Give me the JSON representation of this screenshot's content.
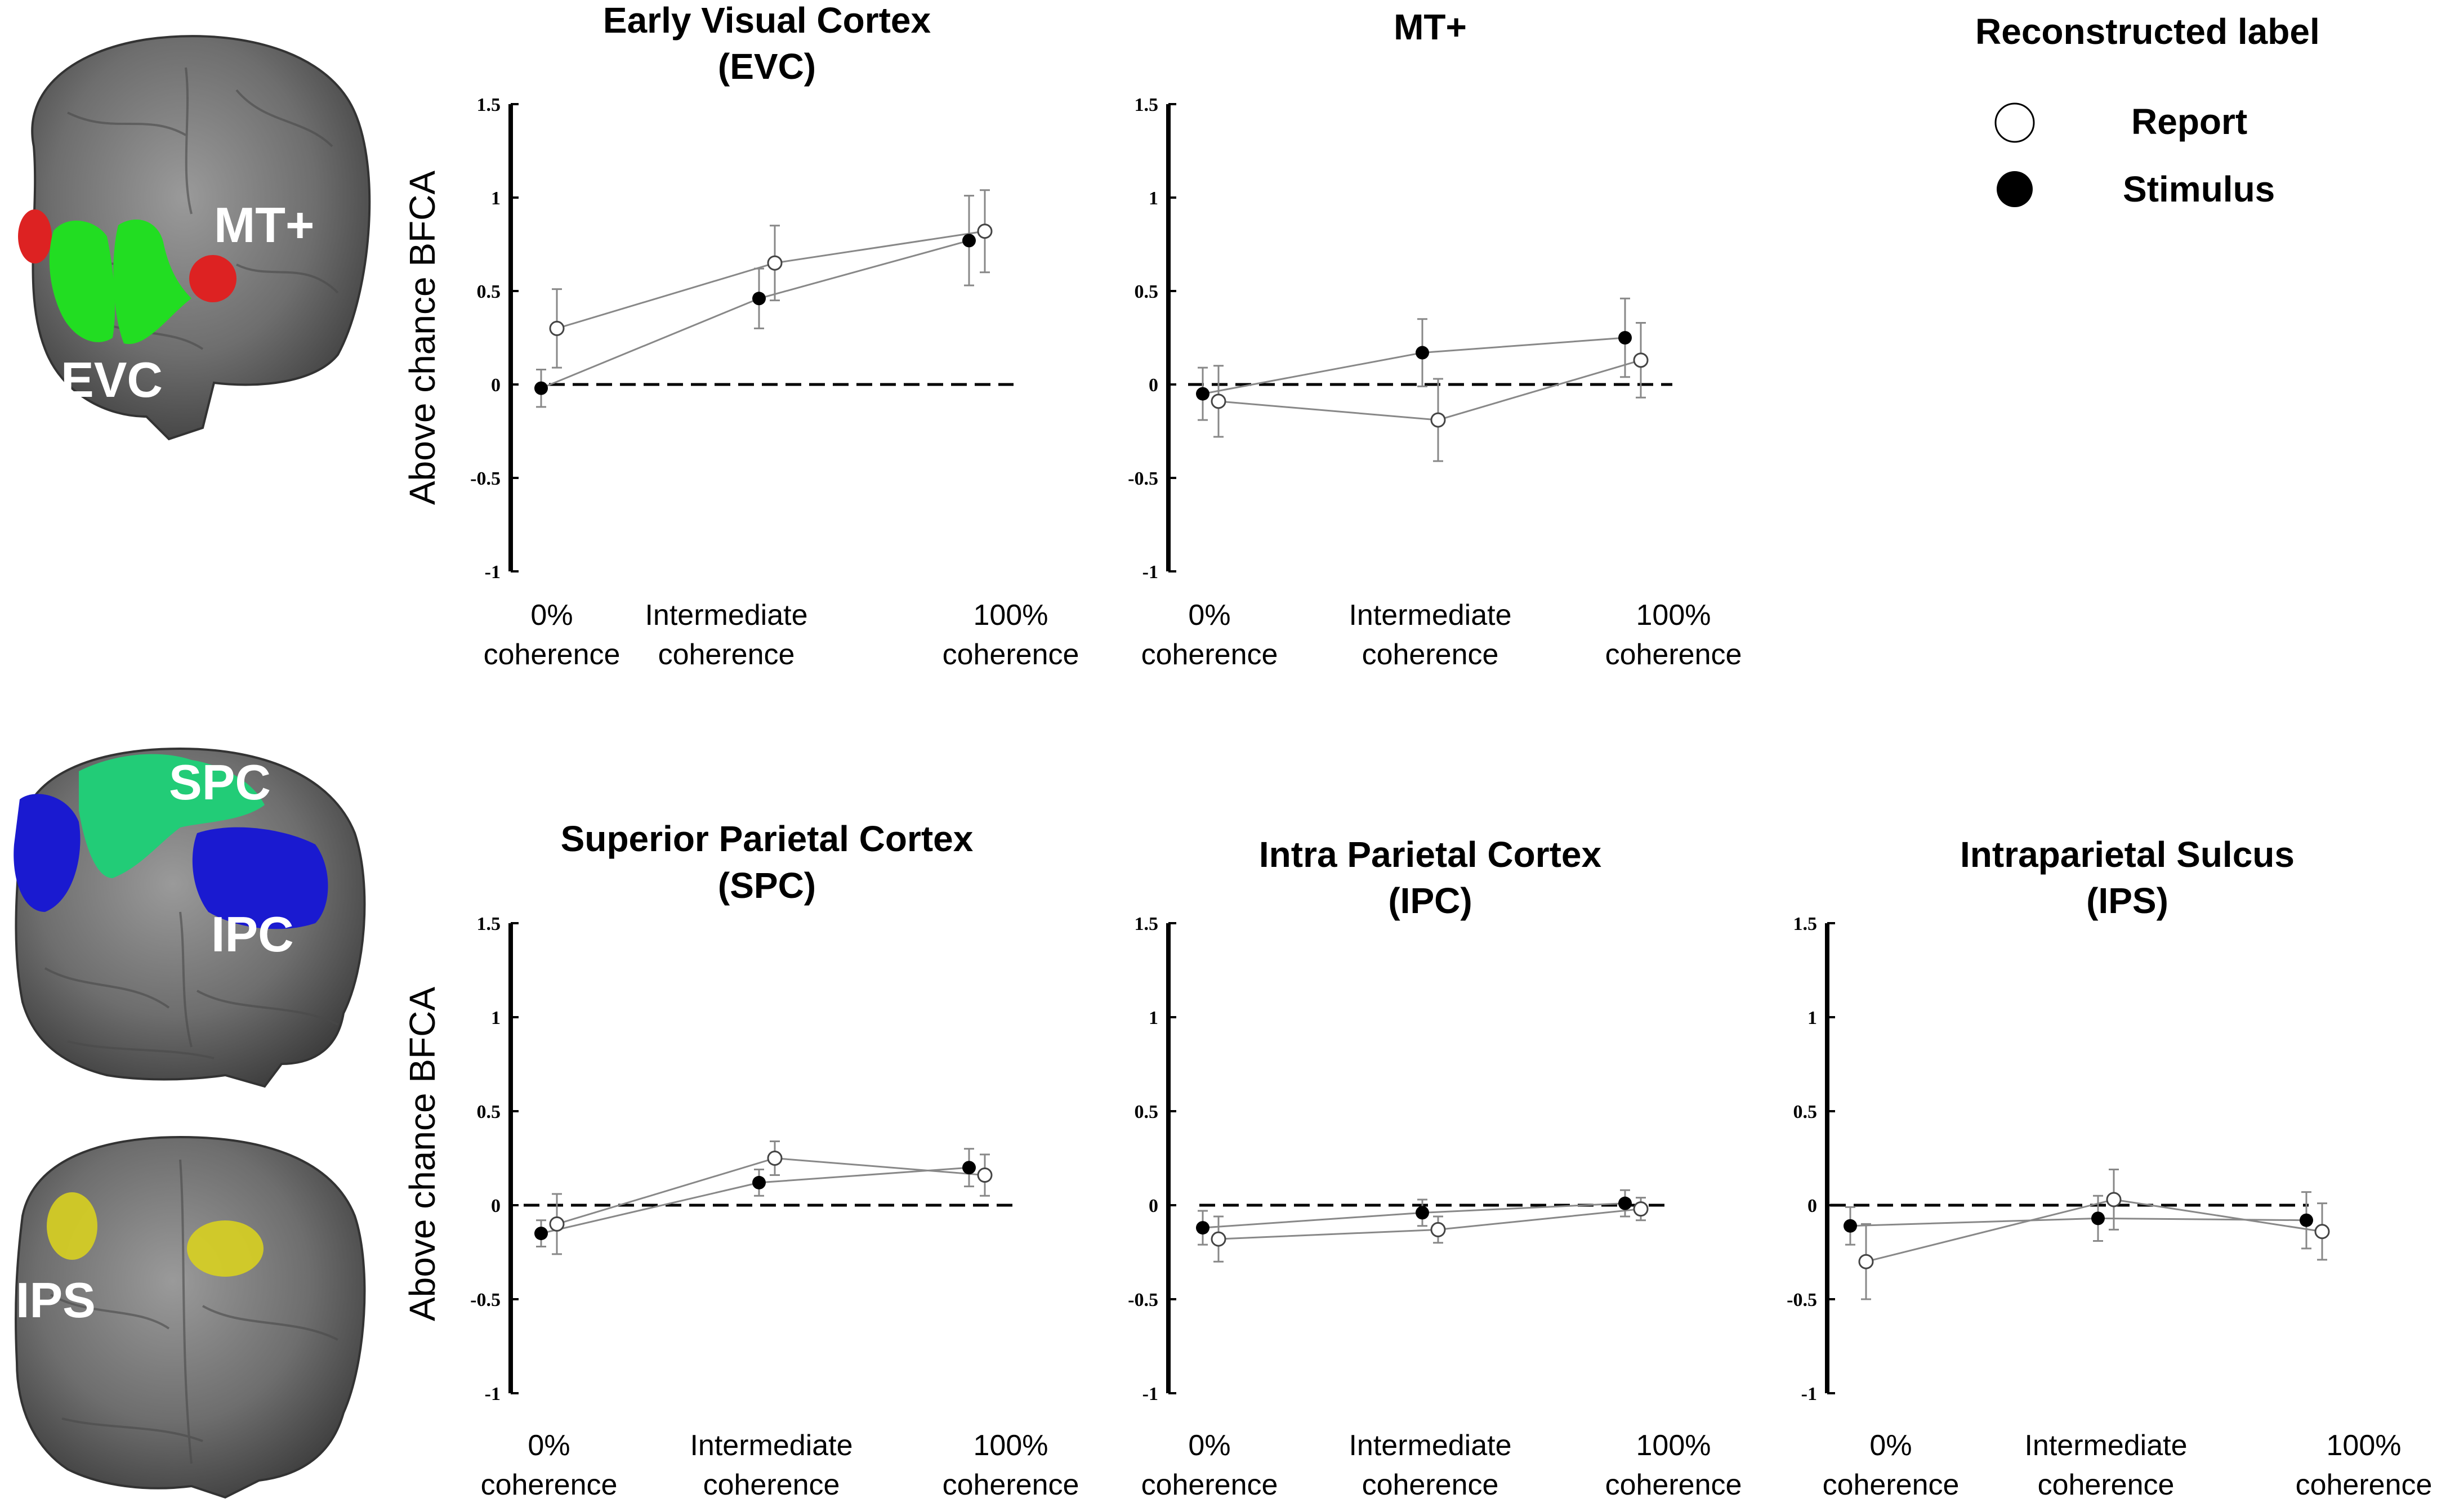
{
  "legend": {
    "title": "Reconstructed label",
    "items": [
      {
        "label": "Report",
        "marker": "open-circle"
      },
      {
        "label": "Stimulus",
        "marker": "filled-circle"
      }
    ]
  },
  "brains": [
    {
      "name": "brain-evc-mt",
      "regions": [
        {
          "label": "EVC",
          "color": "#22dd22"
        },
        {
          "label": "MT+",
          "color": "#dd2222"
        }
      ]
    },
    {
      "name": "brain-spc-ipc",
      "regions": [
        {
          "label": "SPC",
          "color": "#22cc77"
        },
        {
          "label": "IPC",
          "color": "#1a1ad0"
        }
      ]
    },
    {
      "name": "brain-ips",
      "regions": [
        {
          "label": "IPS",
          "color": "#d8d020"
        }
      ]
    }
  ],
  "y_axis_label": "Above chance BFCA",
  "colors": {
    "line": "#888888",
    "marker_open_fill": "#ffffff",
    "marker_filled": "#000000",
    "zero_line": "#000000"
  },
  "chart_data": [
    {
      "type": "line",
      "title_lines": [
        "Early Visual Cortex",
        "(EVC)"
      ],
      "ylabel": "Above chance BFCA",
      "ylim": [
        -1,
        1.5
      ],
      "yticks": [
        "1.5",
        "1",
        "0.5",
        "0",
        "-0.5",
        "-1"
      ],
      "categories": [
        [
          "0%",
          "coherence"
        ],
        [
          "Intermediate",
          "coherence"
        ],
        [
          "100%",
          "coherence"
        ]
      ],
      "series": [
        {
          "name": "Report",
          "marker": "open",
          "values": [
            0.3,
            0.65,
            0.82
          ],
          "errors": [
            0.21,
            0.2,
            0.22
          ]
        },
        {
          "name": "Stimulus",
          "marker": "filled",
          "values": [
            -0.02,
            0.46,
            0.77
          ],
          "errors": [
            0.1,
            0.16,
            0.24
          ]
        }
      ]
    },
    {
      "type": "line",
      "title_lines": [
        "MT+"
      ],
      "ylabel": "",
      "ylim": [
        -1,
        1.5
      ],
      "yticks": [
        "1.5",
        "1",
        "0.5",
        "0",
        "-0.5",
        "-1"
      ],
      "categories": [
        [
          "0%",
          "coherence"
        ],
        [
          "Intermediate",
          "coherence"
        ],
        [
          "100%",
          "coherence"
        ]
      ],
      "series": [
        {
          "name": "Report",
          "marker": "open",
          "values": [
            -0.09,
            -0.19,
            0.13
          ],
          "errors": [
            0.19,
            0.22,
            0.2
          ]
        },
        {
          "name": "Stimulus",
          "marker": "filled",
          "values": [
            -0.05,
            0.17,
            0.25
          ],
          "errors": [
            0.14,
            0.18,
            0.21
          ]
        }
      ]
    },
    {
      "type": "line",
      "title_lines": [
        "Superior Parietal Cortex",
        "(SPC)"
      ],
      "ylabel": "Above chance BFCA",
      "ylim": [
        -1,
        1.5
      ],
      "yticks": [
        "1.5",
        "1",
        "0.5",
        "0",
        "-0.5",
        "-1"
      ],
      "categories": [
        [
          "0%",
          "coherence"
        ],
        [
          "Intermediate",
          "coherence"
        ],
        [
          "100%",
          "coherence"
        ]
      ],
      "series": [
        {
          "name": "Report",
          "marker": "open",
          "values": [
            -0.1,
            0.25,
            0.16
          ],
          "errors": [
            0.16,
            0.09,
            0.11
          ]
        },
        {
          "name": "Stimulus",
          "marker": "filled",
          "values": [
            -0.15,
            0.12,
            0.2
          ],
          "errors": [
            0.07,
            0.07,
            0.1
          ]
        }
      ]
    },
    {
      "type": "line",
      "title_lines": [
        "Intra Parietal Cortex",
        "(IPC)"
      ],
      "ylabel": "",
      "ylim": [
        -1,
        1.5
      ],
      "yticks": [
        "1.5",
        "1",
        "0.5",
        "0",
        "-0.5",
        "-1"
      ],
      "categories": [
        [
          "0%",
          "coherence"
        ],
        [
          "Intermediate",
          "coherence"
        ],
        [
          "100%",
          "coherence"
        ]
      ],
      "series": [
        {
          "name": "Report",
          "marker": "open",
          "values": [
            -0.18,
            -0.13,
            -0.02
          ],
          "errors": [
            0.12,
            0.07,
            0.06
          ]
        },
        {
          "name": "Stimulus",
          "marker": "filled",
          "values": [
            -0.12,
            -0.04,
            0.01
          ],
          "errors": [
            0.09,
            0.07,
            0.07
          ]
        }
      ]
    },
    {
      "type": "line",
      "title_lines": [
        "Intraparietal Sulcus",
        "(IPS)"
      ],
      "ylabel": "",
      "ylim": [
        -1,
        1.5
      ],
      "yticks": [
        "1.5",
        "1",
        "0.5",
        "0",
        "-0.5",
        "-1"
      ],
      "categories": [
        [
          "0%",
          "coherence"
        ],
        [
          "Intermediate",
          "coherence"
        ],
        [
          "100%",
          "coherence"
        ]
      ],
      "series": [
        {
          "name": "Report",
          "marker": "open",
          "values": [
            -0.3,
            0.03,
            -0.14
          ],
          "errors": [
            0.2,
            0.16,
            0.15
          ]
        },
        {
          "name": "Stimulus",
          "marker": "filled",
          "values": [
            -0.11,
            -0.07,
            -0.08
          ],
          "errors": [
            0.1,
            0.12,
            0.15
          ]
        }
      ]
    }
  ]
}
